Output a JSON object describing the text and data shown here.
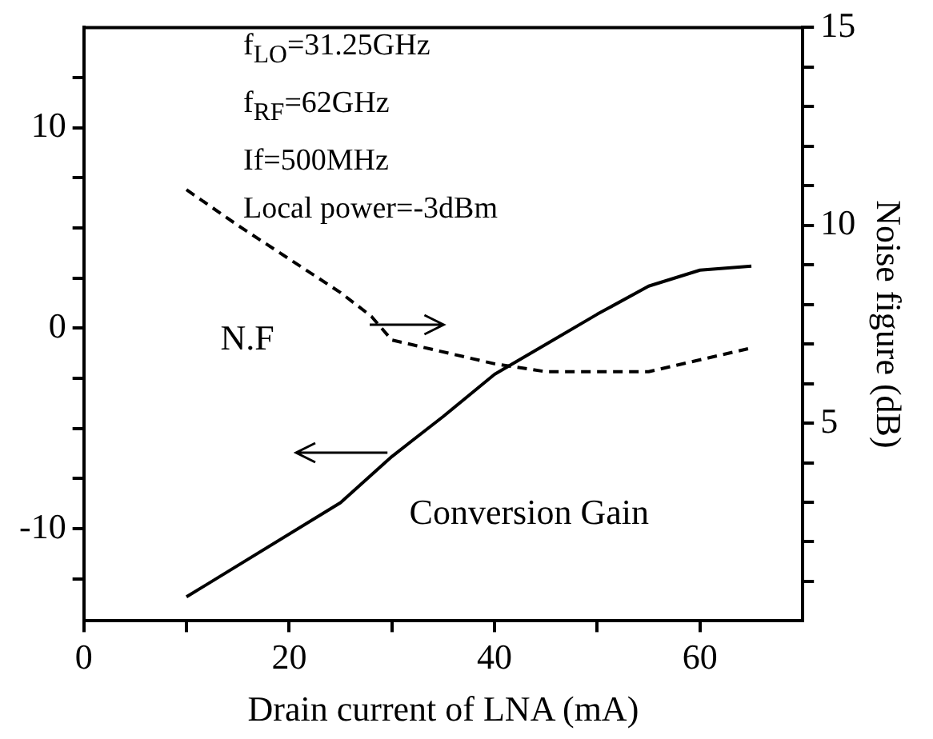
{
  "chart_data": {
    "type": "line",
    "xlabel": "Drain current of LNA (mA)",
    "y2label": "Noise figure (dB)",
    "xlim": [
      0,
      70
    ],
    "xticks": [
      0,
      {
        "value": 10,
        "label": null
      },
      20,
      {
        "value": 30,
        "label": null
      },
      40,
      {
        "value": 50,
        "label": null
      },
      60
    ],
    "ylim": [
      -14.6,
      15
    ],
    "yticks": [
      {
        "value": -12.5,
        "label": null
      },
      -10,
      {
        "value": -7.5,
        "label": null
      },
      {
        "value": -5,
        "label": null
      },
      {
        "value": -2.5,
        "label": null
      },
      0,
      {
        "value": 2.5,
        "label": null
      },
      {
        "value": 5,
        "label": null
      },
      {
        "value": 7.5,
        "label": null
      },
      10,
      {
        "value": 12.5,
        "label": null
      }
    ],
    "y2lim": [
      0,
      15
    ],
    "y2ticks": [
      {
        "value": 1,
        "label": null
      },
      {
        "value": 2,
        "label": null
      },
      {
        "value": 3,
        "label": null
      },
      {
        "value": 4,
        "label": null
      },
      5,
      {
        "value": 6,
        "label": null
      },
      {
        "value": 7,
        "label": null
      },
      {
        "value": 8,
        "label": null
      },
      {
        "value": 9,
        "label": null
      },
      10,
      {
        "value": 11,
        "label": null
      },
      {
        "value": 12,
        "label": null
      },
      {
        "value": 13,
        "label": null
      },
      {
        "value": 14,
        "label": null
      },
      15
    ],
    "grid": false,
    "legend": false,
    "marker": "none",
    "annotations": [
      "f$_{LO}$=31.25GHz",
      "f$_{RF}$=62GHz",
      "If=500MHz",
      "Local power=-3dBm"
    ],
    "series": [
      {
        "name": "Conversion Gain",
        "color": "#000000",
        "line_style": "solid",
        "x": [
          10,
          25,
          30,
          35,
          40,
          45,
          50,
          55,
          60,
          65
        ],
        "values": [
          -13.4,
          -8.7,
          -6.4,
          -4.4,
          -2.3,
          -0.8,
          0.7,
          2.1,
          2.9,
          3.1
        ]
      },
      {
        "name": "N.F",
        "color": "#000000",
        "line_style": "dashed",
        "axis": "y2",
        "x": [
          10,
          15,
          25,
          28,
          30,
          40,
          45,
          55,
          65
        ],
        "values": [
          10.9,
          10.0,
          8.3,
          7.7,
          7.1,
          6.5,
          6.3,
          6.3,
          6.9
        ]
      }
    ]
  }
}
